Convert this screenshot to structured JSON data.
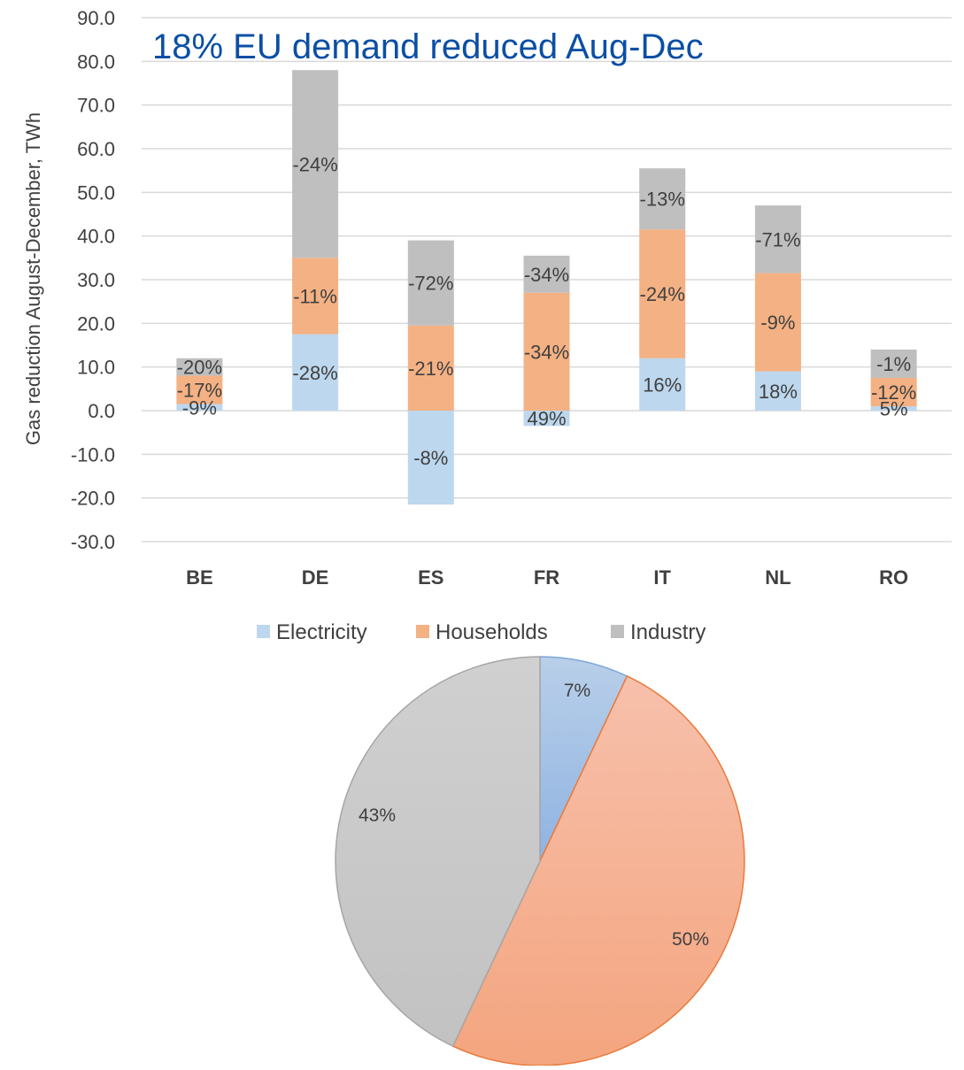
{
  "chart_data": [
    {
      "type": "bar",
      "stacked": true,
      "title": "18% EU demand reduced Aug-Dec",
      "ylabel": "Gas reduction August-December, TWh",
      "xlabel": "",
      "ylim": [
        -30,
        90
      ],
      "yticks": [
        "90.0",
        "80.0",
        "70.0",
        "60.0",
        "50.0",
        "40.0",
        "30.0",
        "20.0",
        "10.0",
        "0.0",
        "-10.0",
        "-20.0",
        "-30.0"
      ],
      "ytick_values": [
        90,
        80,
        70,
        60,
        50,
        40,
        30,
        20,
        10,
        0,
        -10,
        -20,
        -30
      ],
      "grid": true,
      "categories": [
        "BE",
        "DE",
        "ES",
        "FR",
        "IT",
        "NL",
        "RO"
      ],
      "series": [
        {
          "name": "Electricity",
          "color": "#bdd7ee",
          "values": [
            1.5,
            17.5,
            -21.5,
            -3.5,
            12.0,
            9.0,
            1.0
          ],
          "labels": [
            "-9%",
            "-28%",
            "-8%",
            "49%",
            "16%",
            "18%",
            "5%"
          ]
        },
        {
          "name": "Households",
          "color": "#f4b183",
          "values": [
            6.5,
            17.5,
            19.5,
            27.0,
            29.5,
            22.5,
            6.5
          ],
          "labels": [
            "-17%",
            "-11%",
            "-21%",
            "-34%",
            "-24%",
            "-9%",
            "-12%"
          ]
        },
        {
          "name": "Industry",
          "color": "#bfbfbf",
          "values": [
            4.0,
            43.0,
            19.5,
            8.5,
            14.0,
            15.5,
            6.5
          ],
          "labels": [
            "-20%",
            "-24%",
            "-72%",
            "-34%",
            "-13%",
            "-71%",
            "-1%"
          ]
        }
      ],
      "legend_position": "bottom"
    },
    {
      "type": "pie",
      "categories": [
        "Electricity",
        "Households",
        "Industry"
      ],
      "values": [
        7,
        50,
        43
      ],
      "labels": [
        "7%",
        "50%",
        "43%"
      ],
      "colors": [
        "#a3c1e6",
        "#f5b598",
        "#c9c9c9"
      ],
      "edge_colors": [
        "#7da6d9",
        "#e97a3a",
        "#a6a6a6"
      ]
    }
  ]
}
